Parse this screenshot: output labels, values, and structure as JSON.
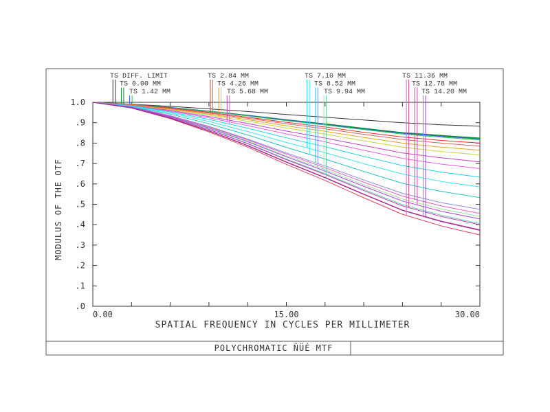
{
  "chart_data": {
    "type": "line",
    "xlabel": "SPATIAL FREQUENCY IN CYCLES PER MILLIMETER",
    "ylabel": "MODULUS OF THE OTF",
    "footer": "POLYCHROMATIC ÑÜÉ  MTF",
    "xlim": [
      0,
      30
    ],
    "ylim": [
      0,
      1
    ],
    "x_ticks": [
      0,
      15,
      30
    ],
    "x_tick_labels": [
      "0.00",
      "15.00",
      "30.00"
    ],
    "y_ticks": [
      0,
      0.1,
      0.2,
      0.3,
      0.4,
      0.5,
      0.6,
      0.7,
      0.8,
      0.9,
      1.0
    ],
    "y_tick_labels": [
      ".0",
      ".1",
      ".2",
      ".3",
      ".4",
      ".5",
      ".6",
      ".7",
      ".8",
      ".9",
      "1.0"
    ],
    "x": [
      0,
      3,
      6,
      9,
      12,
      15,
      18,
      21,
      24,
      27,
      30
    ],
    "legend": [
      {
        "label": "TS DIFF. LIMIT",
        "colors": [
          "#333333",
          "#333333"
        ],
        "marker_x": 1.65
      },
      {
        "label": "TS 0.00 MM",
        "colors": [
          "#0a8a3a",
          "#0a8a3a"
        ],
        "marker_x": 2.3
      },
      {
        "label": "TS 1.42 MM",
        "colors": [
          "#3a5ad8",
          "#22c45a"
        ],
        "marker_x": 2.95
      },
      {
        "label": "TS 2.84 MM",
        "colors": [
          "#e03030",
          "#e06060"
        ],
        "marker_x": 9.2
      },
      {
        "label": "TS 4.26 MM",
        "colors": [
          "#e0a020",
          "#c8d040"
        ],
        "marker_x": 9.85
      },
      {
        "label": "TS 5.68 MM",
        "colors": [
          "#c040c0",
          "#e060e0"
        ],
        "marker_x": 10.5
      },
      {
        "label": "TS 7.10 MM",
        "colors": [
          "#20d0e0",
          "#40e0f0"
        ],
        "marker_x": 16.7
      },
      {
        "label": "TS 8.52 MM",
        "colors": [
          "#20c0c0",
          "#8a8ae0"
        ],
        "marker_x": 17.35
      },
      {
        "label": "TS 9.94 MM",
        "colors": [
          "#a0e0a0",
          "#60d0a0"
        ],
        "marker_x": 18.0
      },
      {
        "label": "TS 11.36 MM",
        "colors": [
          "#e060e0",
          "#d040a0"
        ],
        "marker_x": 24.4
      },
      {
        "label": "TS 12.78 MM",
        "colors": [
          "#e04060",
          "#c040c0"
        ],
        "marker_x": 25.05
      },
      {
        "label": "TS 14.20 MM",
        "colors": [
          "#e060c0",
          "#a040e0"
        ],
        "marker_x": 25.7
      }
    ],
    "series": [
      {
        "color": "#333333",
        "values": [
          1.0,
          0.991,
          0.98,
          0.968,
          0.955,
          0.94,
          0.927,
          0.913,
          0.9,
          0.89,
          0.883
        ]
      },
      {
        "color": "#0a8a3a",
        "values": [
          1.0,
          0.99,
          0.975,
          0.957,
          0.937,
          0.915,
          0.895,
          0.873,
          0.852,
          0.838,
          0.825
        ]
      },
      {
        "color": "#0a8a3a",
        "values": [
          1.0,
          0.99,
          0.974,
          0.956,
          0.935,
          0.913,
          0.893,
          0.871,
          0.85,
          0.836,
          0.822
        ]
      },
      {
        "color": "#3a5ad8",
        "values": [
          1.0,
          0.99,
          0.975,
          0.956,
          0.935,
          0.913,
          0.892,
          0.869,
          0.848,
          0.833,
          0.82
        ]
      },
      {
        "color": "#22c45a",
        "values": [
          1.0,
          0.99,
          0.974,
          0.955,
          0.933,
          0.91,
          0.889,
          0.866,
          0.844,
          0.829,
          0.815
        ]
      },
      {
        "color": "#e03030",
        "values": [
          1.0,
          0.989,
          0.972,
          0.951,
          0.927,
          0.902,
          0.879,
          0.853,
          0.83,
          0.813,
          0.8
        ]
      },
      {
        "color": "#e06060",
        "values": [
          1.0,
          0.988,
          0.969,
          0.947,
          0.922,
          0.895,
          0.87,
          0.843,
          0.818,
          0.8,
          0.785
        ]
      },
      {
        "color": "#e0a020",
        "values": [
          1.0,
          0.987,
          0.966,
          0.942,
          0.915,
          0.885,
          0.858,
          0.828,
          0.8,
          0.78,
          0.765
        ]
      },
      {
        "color": "#c8d040",
        "values": [
          1.0,
          0.986,
          0.964,
          0.937,
          0.907,
          0.874,
          0.844,
          0.811,
          0.78,
          0.759,
          0.742
        ]
      },
      {
        "color": "#c040c0",
        "values": [
          1.0,
          0.985,
          0.96,
          0.93,
          0.896,
          0.859,
          0.825,
          0.788,
          0.752,
          0.728,
          0.708
        ]
      },
      {
        "color": "#e060e0",
        "values": [
          1.0,
          0.984,
          0.957,
          0.924,
          0.886,
          0.845,
          0.806,
          0.765,
          0.725,
          0.697,
          0.675
        ]
      },
      {
        "color": "#20d0e0",
        "values": [
          1.0,
          0.983,
          0.953,
          0.916,
          0.873,
          0.826,
          0.782,
          0.735,
          0.69,
          0.658,
          0.633
        ]
      },
      {
        "color": "#40e0f0",
        "values": [
          1.0,
          0.981,
          0.948,
          0.906,
          0.857,
          0.803,
          0.753,
          0.699,
          0.648,
          0.612,
          0.585
        ]
      },
      {
        "color": "#20c0c0",
        "values": [
          1.0,
          0.979,
          0.942,
          0.895,
          0.84,
          0.779,
          0.722,
          0.661,
          0.603,
          0.563,
          0.533
        ]
      },
      {
        "color": "#8a8ae0",
        "values": [
          1.0,
          0.977,
          0.935,
          0.882,
          0.82,
          0.752,
          0.688,
          0.619,
          0.554,
          0.508,
          0.475
        ]
      },
      {
        "color": "#a0e0a0",
        "values": [
          1.0,
          0.976,
          0.932,
          0.876,
          0.811,
          0.738,
          0.67,
          0.596,
          0.526,
          0.477,
          0.44
        ]
      },
      {
        "color": "#60d0a0",
        "values": [
          1.0,
          0.974,
          0.927,
          0.868,
          0.799,
          0.722,
          0.65,
          0.572,
          0.498,
          0.446,
          0.405
        ]
      },
      {
        "color": "#d040a0",
        "values": [
          1.0,
          0.973,
          0.923,
          0.861,
          0.789,
          0.708,
          0.632,
          0.55,
          0.472,
          0.418,
          0.375
        ]
      },
      {
        "color": "#e04060",
        "values": [
          1.0,
          0.972,
          0.92,
          0.855,
          0.78,
          0.696,
          0.617,
          0.532,
          0.451,
          0.394,
          0.35
        ]
      },
      {
        "color": "#c040c0",
        "values": [
          1.0,
          0.974,
          0.926,
          0.866,
          0.797,
          0.719,
          0.646,
          0.567,
          0.492,
          0.44,
          0.4
        ]
      },
      {
        "color": "#e060c0",
        "values": [
          1.0,
          0.976,
          0.933,
          0.879,
          0.816,
          0.746,
          0.679,
          0.608,
          0.54,
          0.492,
          0.455
        ]
      },
      {
        "color": "#a040e0",
        "values": [
          1.0,
          0.975,
          0.93,
          0.873,
          0.807,
          0.733,
          0.663,
          0.588,
          0.516,
          0.466,
          0.428
        ]
      },
      {
        "color": "#8a2a8a",
        "values": [
          1.0,
          0.972,
          0.922,
          0.86,
          0.787,
          0.706,
          0.63,
          0.548,
          0.47,
          0.415,
          0.372
        ]
      }
    ]
  }
}
